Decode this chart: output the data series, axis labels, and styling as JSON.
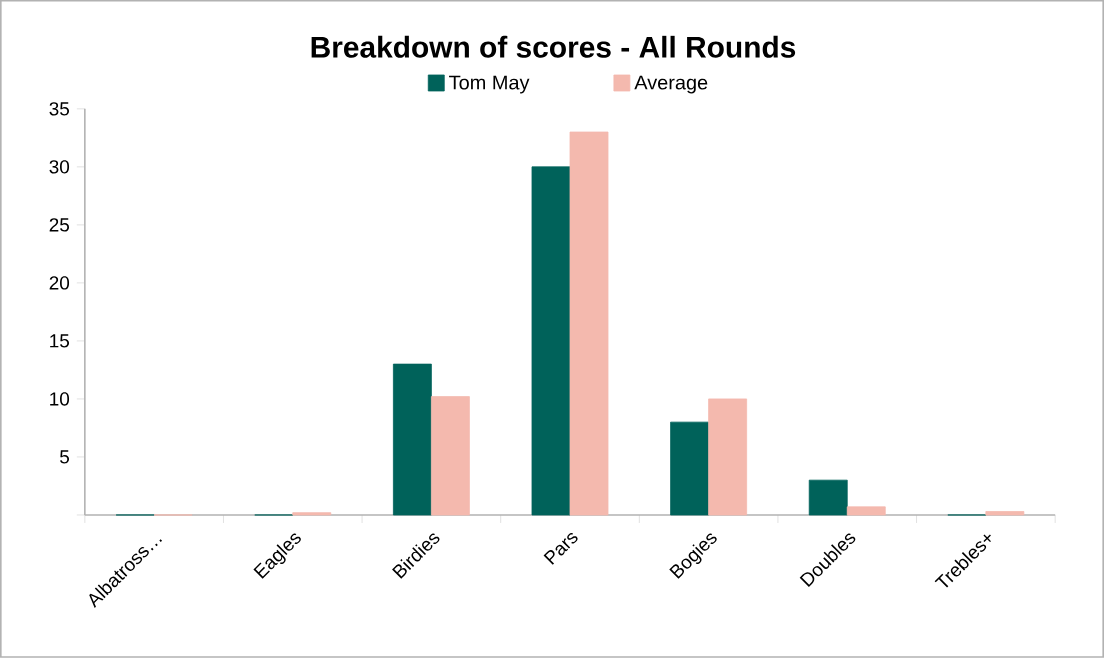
{
  "chart_data": {
    "type": "bar",
    "title": "Breakdown of scores - All Rounds",
    "categories": [
      "Albatross…",
      "Eagles",
      "Birdies",
      "Pars",
      "Bogies",
      "Doubles",
      "Trebles+"
    ],
    "series": [
      {
        "name": "Tom May",
        "color": "#00625a",
        "values": [
          0,
          0,
          13,
          30,
          8,
          3,
          0
        ]
      },
      {
        "name": "Average",
        "color": "#f4b9ae",
        "values": [
          0,
          0.2,
          10.2,
          33,
          10,
          0.7,
          0.3
        ]
      }
    ],
    "ylim": [
      0,
      35
    ],
    "yticks": [
      {
        "value": 0,
        "label": null
      },
      5,
      10,
      15,
      20,
      25,
      30,
      35
    ],
    "grid": false,
    "legend": "top"
  }
}
